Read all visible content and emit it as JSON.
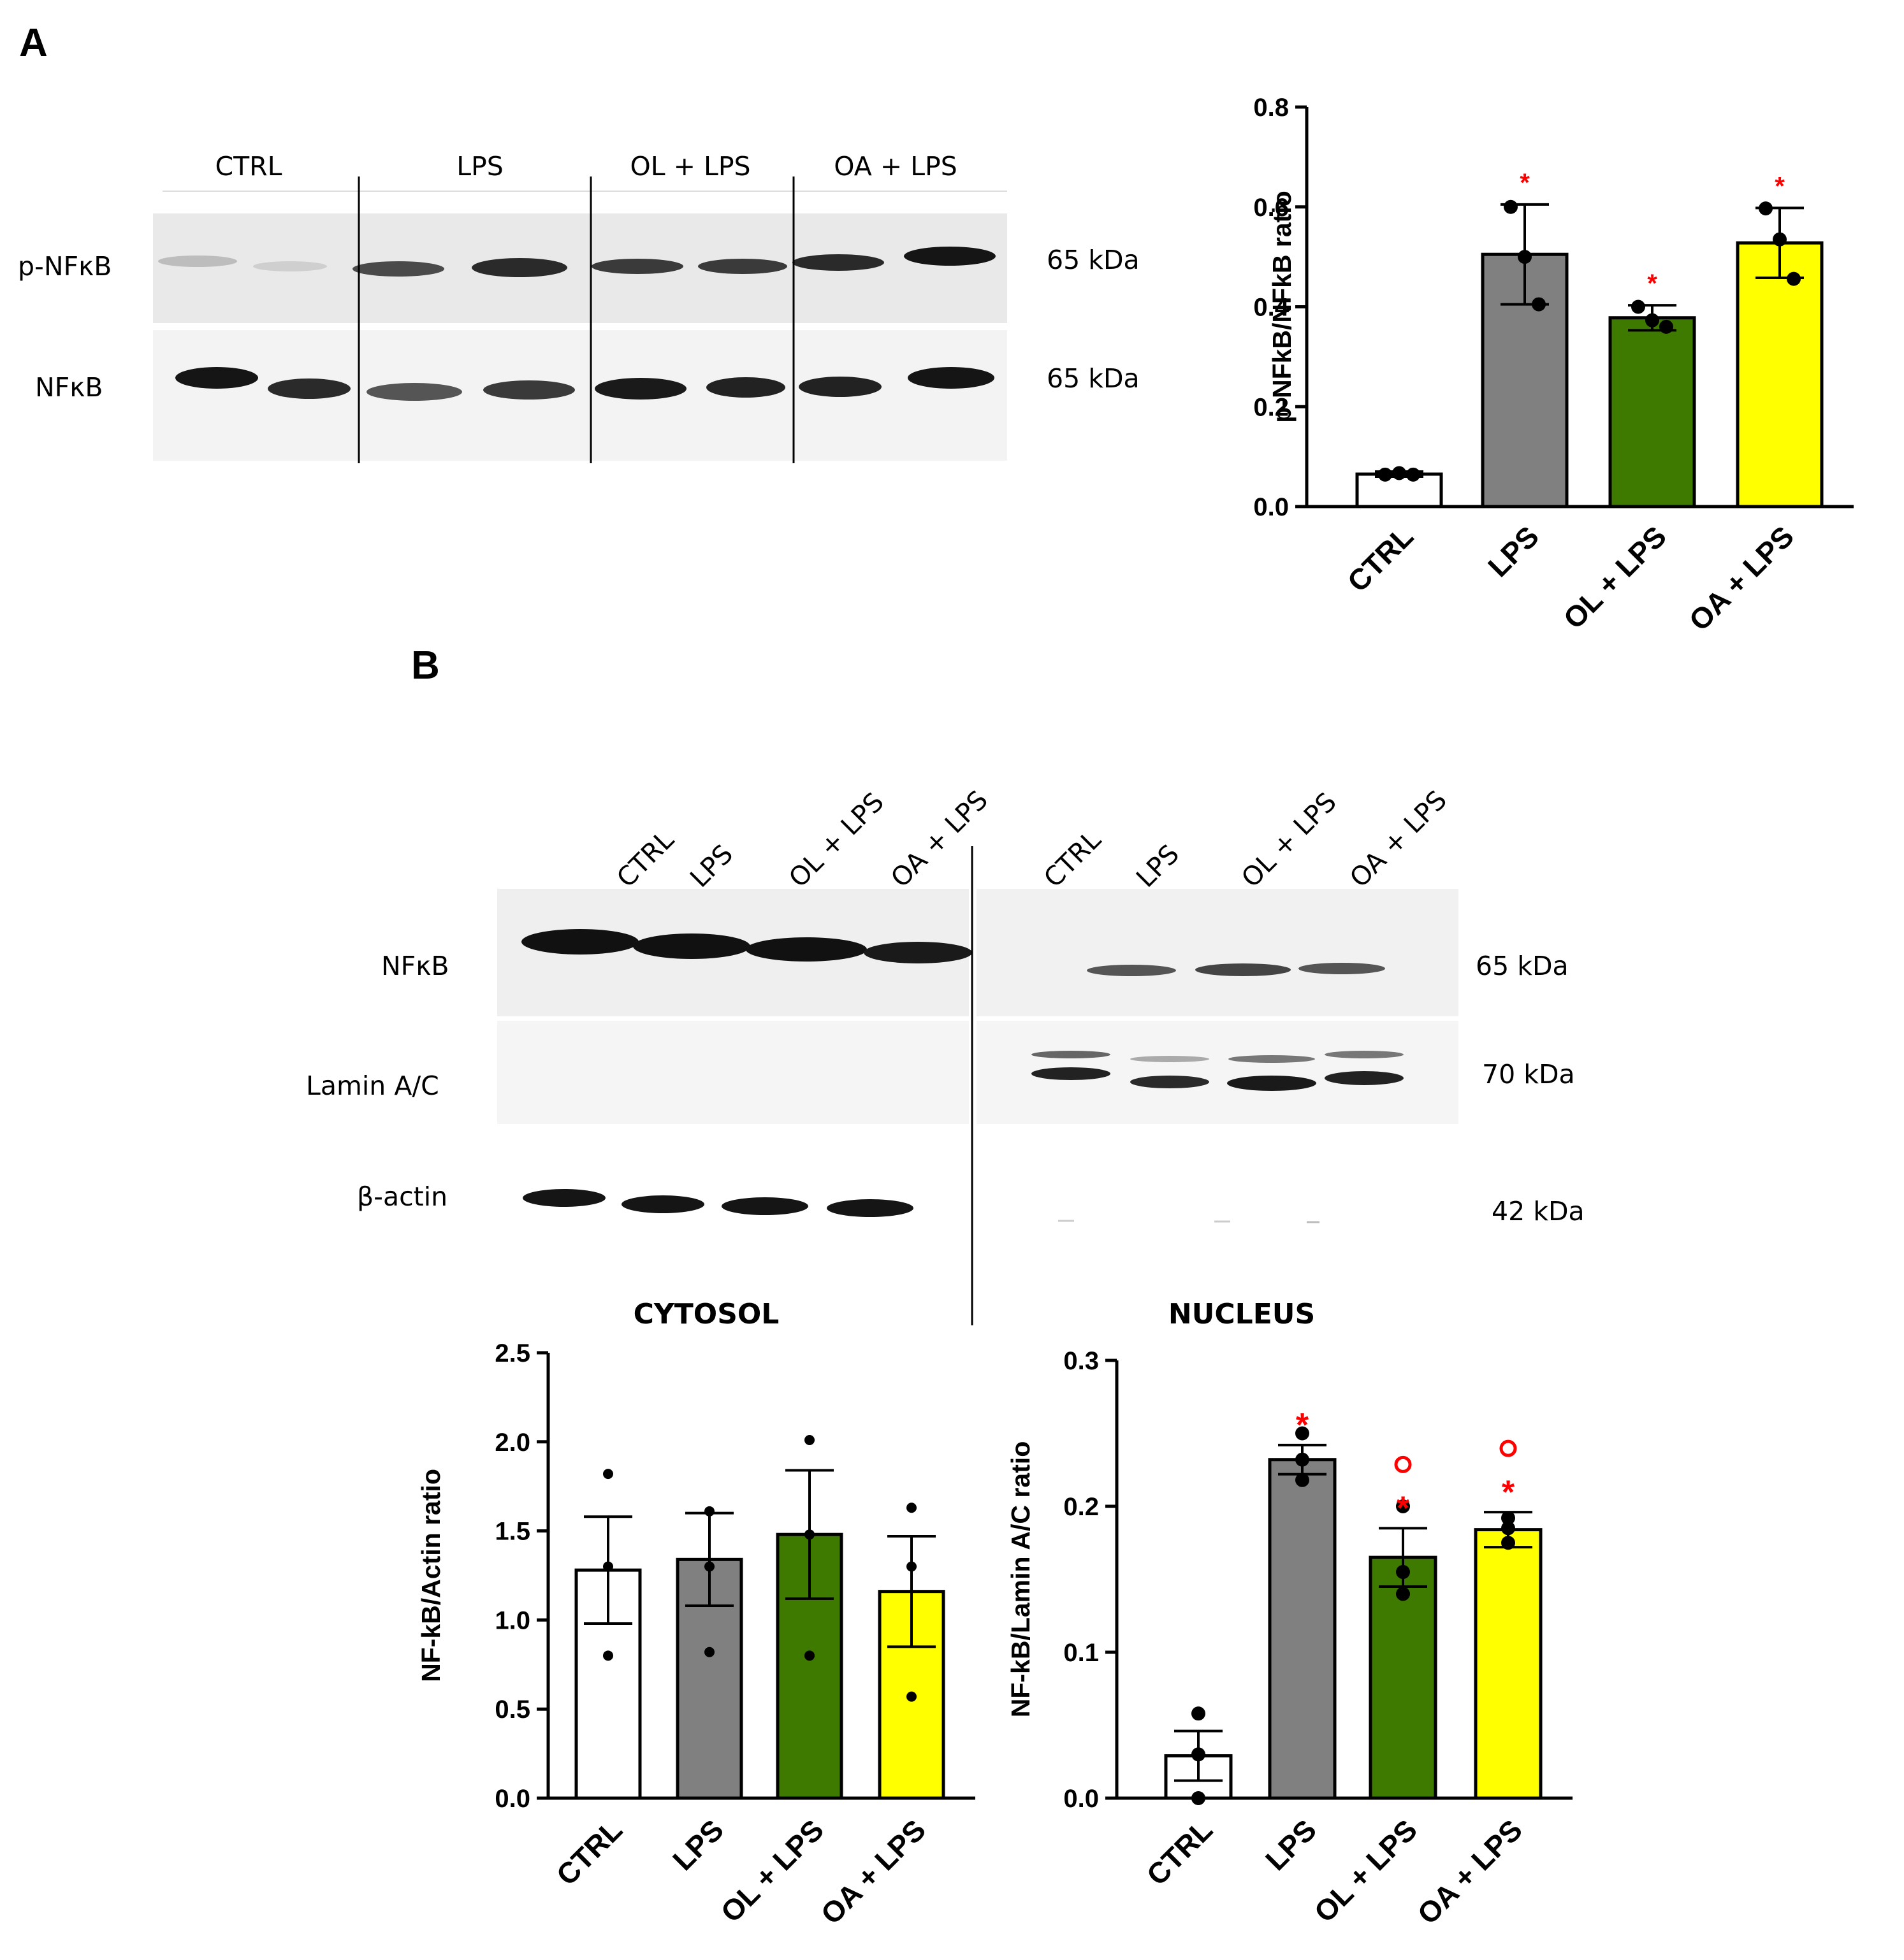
{
  "panel_labels": {
    "a": "A",
    "b": "B"
  },
  "panel_a": {
    "blot": {
      "lane_groups": [
        "CTRL",
        "LPS",
        "OL + LPS",
        "OA + LPS"
      ],
      "rows": [
        {
          "label": "p-NFκB",
          "kda": "65 kDa"
        },
        {
          "label": "NFκB",
          "kda": "65 kDa"
        }
      ]
    }
  },
  "panel_b": {
    "blot": {
      "lanes_left": [
        "CTRL",
        "LPS",
        "OL + LPS",
        "OA + LPS"
      ],
      "lanes_right": [
        "CTRL",
        "LPS",
        "OL + LPS",
        "OA + LPS"
      ],
      "rows": [
        {
          "label": "NFκB",
          "kda": "65 kDa"
        },
        {
          "label": "Lamin A/C",
          "kda": "70 kDa"
        },
        {
          "label": "β-actin",
          "kda": "42 kDa"
        }
      ]
    },
    "titles": {
      "cytosol": "CYTOSOL",
      "nucleus": "NUCLEUS"
    }
  },
  "colors": {
    "ctrl": "#ffffff",
    "lps": "#808080",
    "ol": "#3f7a00",
    "oa": "#ffff00",
    "significance": "#ff0000"
  },
  "chart_data": [
    {
      "id": "A",
      "type": "bar",
      "categories": [
        "CTRL",
        "LPS",
        "OL + LPS",
        "OA + LPS"
      ],
      "values": [
        0.065,
        0.505,
        0.378,
        0.528
      ],
      "error": [
        0.005,
        0.1,
        0.025,
        0.07
      ],
      "points": [
        [
          0.064,
          0.067,
          0.064
        ],
        [
          0.6,
          0.5,
          0.405
        ],
        [
          0.4,
          0.373,
          0.36
        ],
        [
          0.597,
          0.535,
          0.456
        ]
      ],
      "annotations": [
        "",
        "*",
        "*",
        "*"
      ],
      "ylabel": "p-NFkB/NFkB ratio",
      "ylim": [
        0,
        0.8
      ],
      "yticks": [
        "0.0",
        "0.2",
        "0.4",
        "0.6",
        "0.8"
      ],
      "ytick_values": [
        0,
        0.2,
        0.4,
        0.6,
        0.8
      ]
    },
    {
      "id": "B-cytosol",
      "type": "bar",
      "title": "CYTOSOL",
      "categories": [
        "CTRL",
        "LPS",
        "OL + LPS",
        "OA + LPS"
      ],
      "values": [
        1.28,
        1.34,
        1.48,
        1.16
      ],
      "error": [
        0.3,
        0.26,
        0.36,
        0.31
      ],
      "points": [
        [
          1.82,
          1.3,
          0.8
        ],
        [
          1.61,
          1.3,
          0.82
        ],
        [
          2.01,
          1.48,
          0.8
        ],
        [
          1.63,
          1.3,
          0.57
        ]
      ],
      "annotations": [
        "",
        "",
        "",
        ""
      ],
      "ylabel": "NF-kB/Actin ratio",
      "ylim": [
        0,
        2.5
      ],
      "yticks": [
        "0.0",
        "0.5",
        "1.0",
        "1.5",
        "2.0",
        "2.5"
      ],
      "ytick_values": [
        0,
        0.5,
        1.0,
        1.5,
        2.0,
        2.5
      ]
    },
    {
      "id": "B-nucleus",
      "type": "bar",
      "title": "NUCLEUS",
      "categories": [
        "CTRL",
        "LPS",
        "OL + LPS",
        "OA + LPS"
      ],
      "values": [
        0.029,
        0.232,
        0.165,
        0.184
      ],
      "error": [
        0.017,
        0.01,
        0.02,
        0.012
      ],
      "points": [
        [
          0.058,
          0.03,
          0.0
        ],
        [
          0.25,
          0.232,
          0.218
        ],
        [
          0.2,
          0.155,
          0.14
        ],
        [
          0.192,
          0.185,
          0.175
        ]
      ],
      "annotations": [
        "",
        "*",
        "°*",
        "°*"
      ],
      "ylabel": "NF-kB/Lamin A/C ratio",
      "ylim": [
        0,
        0.3
      ],
      "yticks": [
        "0.0",
        "0.1",
        "0.2",
        "0.3"
      ],
      "ytick_values": [
        0,
        0.1,
        0.2,
        0.3
      ]
    }
  ]
}
